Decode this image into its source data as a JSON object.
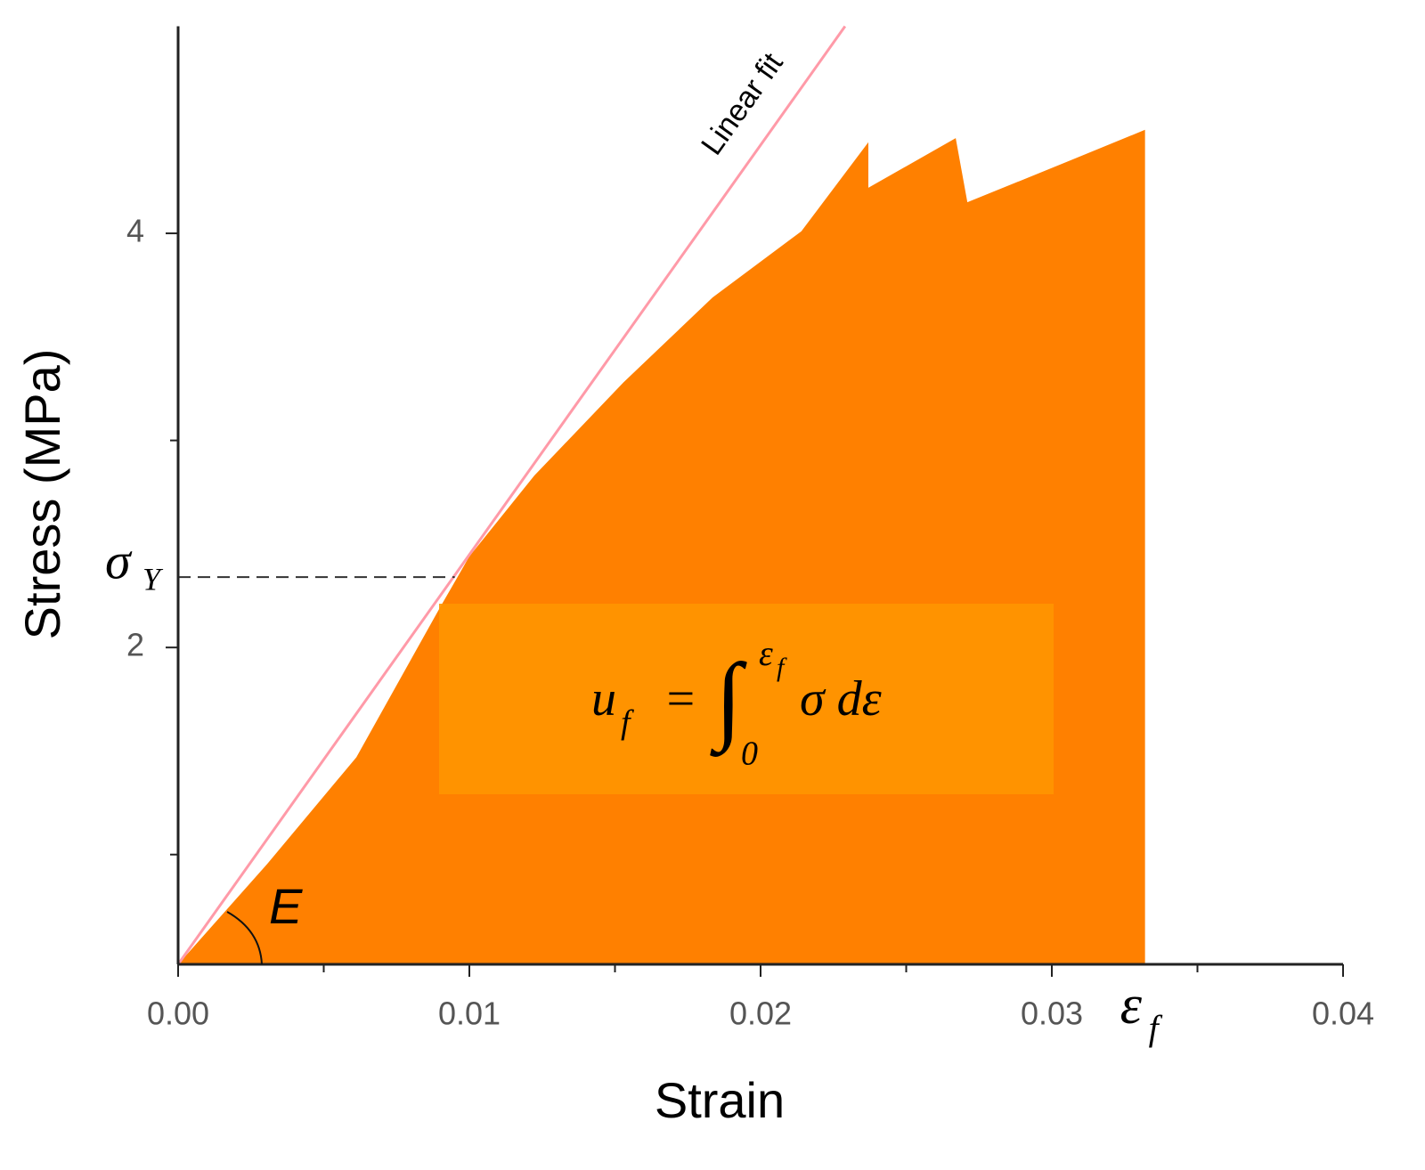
{
  "chart_data": {
    "type": "area",
    "x_label": "Strain",
    "y_label": "Stress (MPa)",
    "x": [
      0,
      0.00306,
      0.00612,
      0.00902,
      0.01,
      0.01223,
      0.01529,
      0.01835,
      0.0214,
      0.0237,
      0.0237,
      0.0267,
      0.0271,
      0.0306,
      0.0332
    ],
    "values": [
      0.47,
      0.955,
      1.47,
      2.2,
      2.44,
      2.83,
      3.28,
      3.69,
      4.01,
      4.44,
      4.22,
      4.46,
      4.15,
      4.35,
      4.5
    ],
    "color": "#ff8000",
    "xlim": [
      0,
      0.04
    ],
    "ylim": [
      0.47,
      5.0
    ],
    "xticks": [
      {
        "value": 0,
        "label": "0.00"
      },
      {
        "value": 0.01,
        "label": "0.01"
      },
      {
        "value": 0.02,
        "label": "0.02"
      },
      {
        "value": 0.03,
        "label": "0.03"
      },
      {
        "value": 0.04,
        "label": "0.04"
      }
    ],
    "yticks": [
      2,
      4
    ],
    "x_minor_ticks": [
      0.005,
      0.015,
      0.025,
      0.035
    ],
    "y_minor_ticks": [
      1,
      3
    ],
    "linear_fit": {
      "label": "Linear fit",
      "color": "#ff9aa8",
      "x": [
        0,
        0.0229
      ],
      "y": [
        0.47,
        5.0
      ]
    },
    "yield": {
      "symbol": "σ",
      "subscript": "Y",
      "x": 0.0095,
      "y": 2.34
    },
    "modulus_label": "E",
    "failure": {
      "symbol": "ε",
      "subscript": "f"
    },
    "formula": {
      "lhs": "u",
      "lhs_sub": "f",
      "equals": "=",
      "integral": "∫",
      "lower": "0",
      "upper": "ε",
      "upper_sub": "f",
      "integrand": "σ dε"
    }
  }
}
